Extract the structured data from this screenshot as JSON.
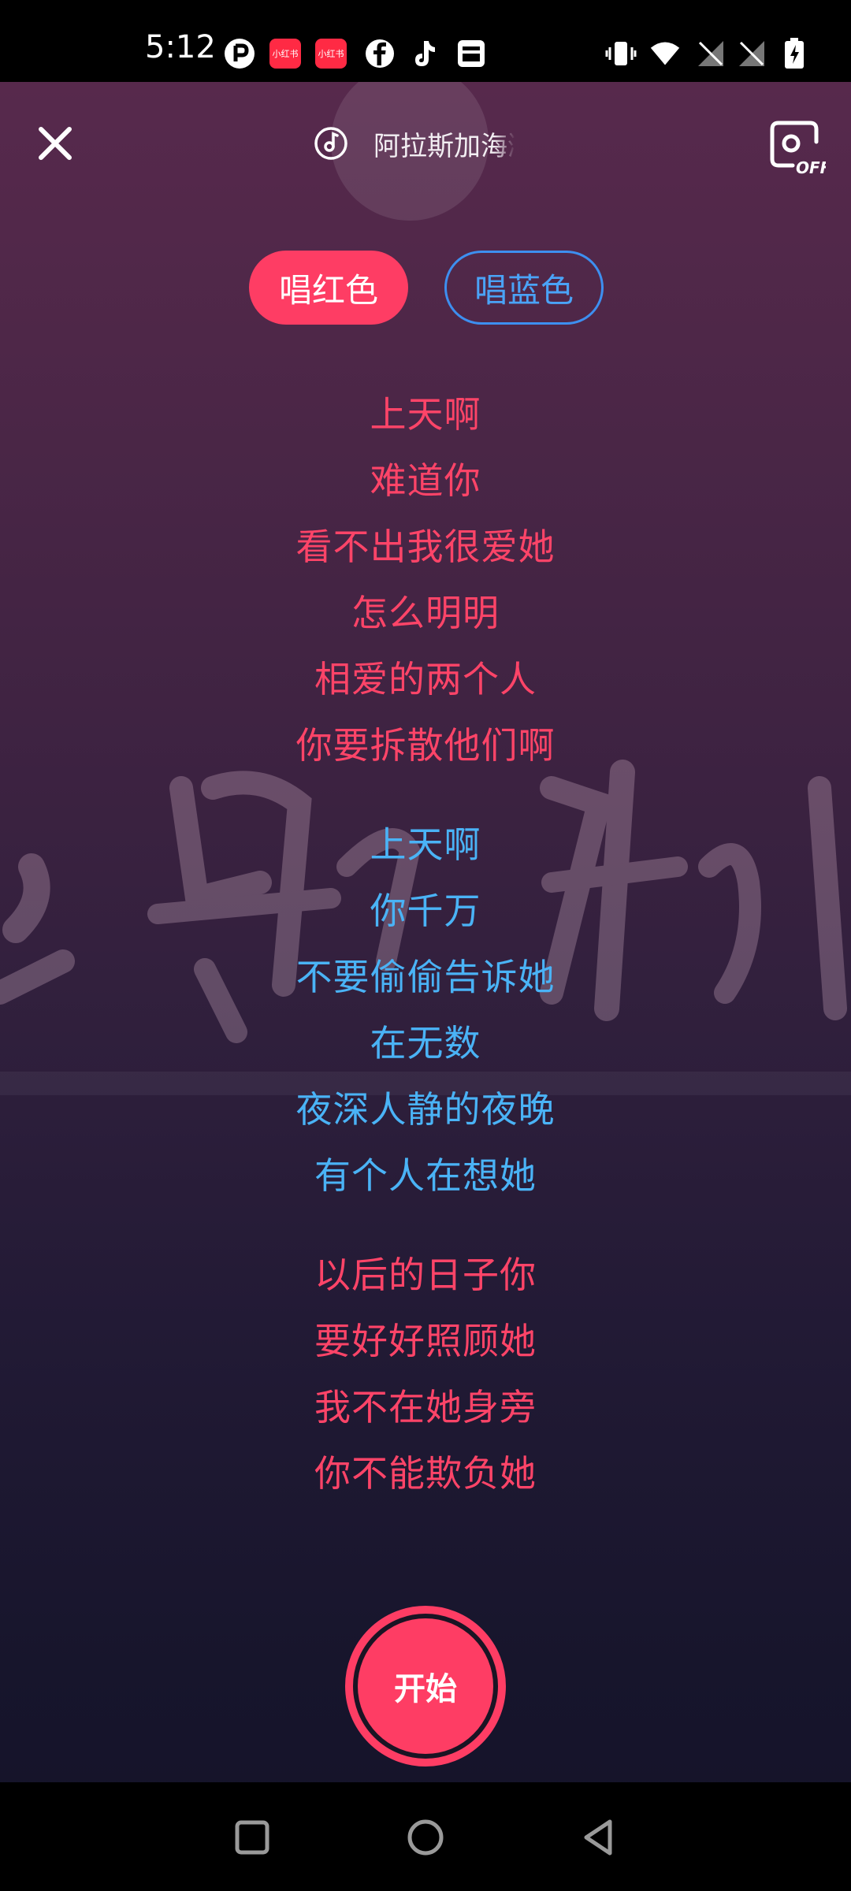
{
  "status_bar": {
    "time": "5:12",
    "notification_icons": [
      "p-app-icon",
      "xiaohongshu-icon",
      "xiaohongshu-icon",
      "facebook-icon",
      "tiktok-icon",
      "news-app-icon"
    ],
    "badge_text": "小红书",
    "system_icons": [
      "vibrate-icon",
      "wifi-icon",
      "no-signal-icon",
      "no-signal-icon",
      "battery-charging-icon"
    ]
  },
  "toolbar": {
    "song_title": "阿拉斯加海湾",
    "camera_state": "OFF"
  },
  "part_selector": {
    "red_label": "唱红色",
    "blue_label": "唱蓝色",
    "selected": "red"
  },
  "lyrics": [
    {
      "text": "上天啊",
      "color": "red"
    },
    {
      "text": "难道你",
      "color": "red"
    },
    {
      "text": "看不出我很爱她",
      "color": "red"
    },
    {
      "text": "怎么明明",
      "color": "red"
    },
    {
      "text": "相爱的两个人",
      "color": "red"
    },
    {
      "text": "你要拆散他们啊",
      "color": "red"
    },
    {
      "text": "上天啊",
      "color": "blue"
    },
    {
      "text": "你千万",
      "color": "blue"
    },
    {
      "text": "不要偷偷告诉她",
      "color": "blue"
    },
    {
      "text": "在无数",
      "color": "blue"
    },
    {
      "text": "夜深人静的夜晚",
      "color": "blue"
    },
    {
      "text": "有个人在想她",
      "color": "blue"
    },
    {
      "text": "以后的日子你",
      "color": "red"
    },
    {
      "text": "要好好照顾她",
      "color": "red"
    },
    {
      "text": "我不在她身旁",
      "color": "red"
    },
    {
      "text": "你不能欺负她",
      "color": "red"
    }
  ],
  "start_button": {
    "label": "开始"
  },
  "colors": {
    "accent_red": "#fe3d64",
    "lyric_red": "#fe4468",
    "lyric_blue": "#4ab3f6",
    "pill_blue_border": "#3d8ff0"
  }
}
